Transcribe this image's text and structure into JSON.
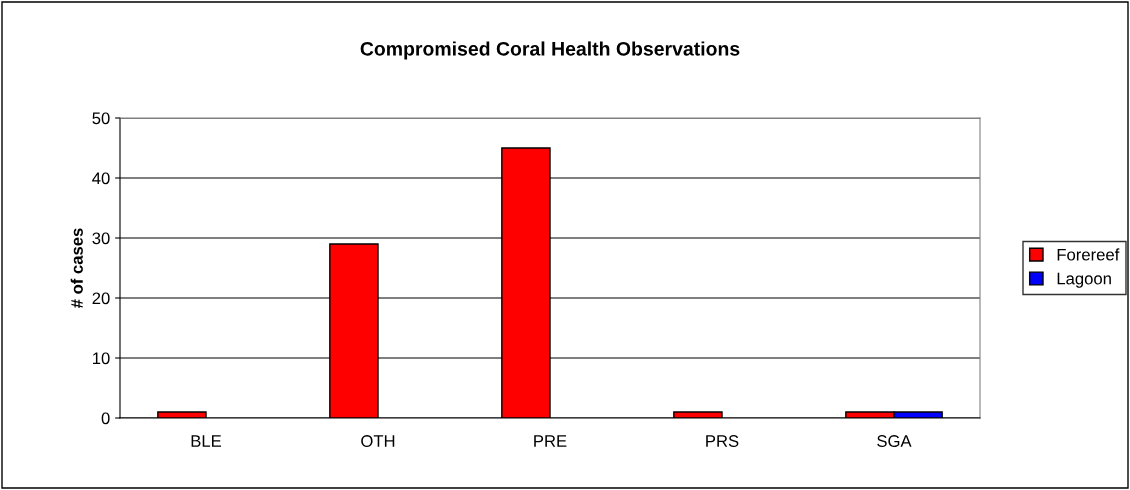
{
  "chart_data": {
    "type": "bar",
    "title": "Compromised Coral Health Observations",
    "ylabel": "# of cases",
    "categories": [
      "BLE",
      "OTH",
      "PRE",
      "PRS",
      "SGA"
    ],
    "series": [
      {
        "name": "Forereef",
        "color": "#ff0000",
        "values": [
          1,
          29,
          45,
          1,
          1
        ]
      },
      {
        "name": "Lagoon",
        "color": "#0000ff",
        "values": [
          null,
          null,
          null,
          null,
          1
        ]
      }
    ],
    "ylim": [
      0,
      50
    ],
    "yticks": [
      0,
      10,
      20,
      30,
      40,
      50
    ],
    "grid": "y",
    "legend": "right"
  }
}
